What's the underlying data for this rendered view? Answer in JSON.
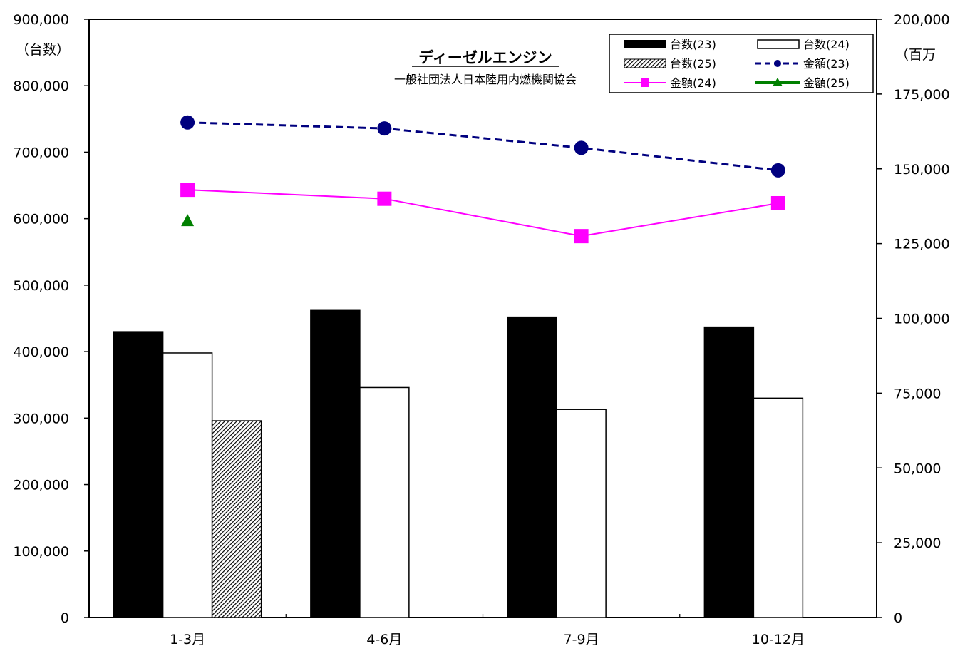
{
  "chart_data": {
    "type": "bar",
    "title": "ディーゼルエンジン",
    "subtitle": "一般社団法人日本陸用内燃機関協会",
    "categories": [
      "1-3月",
      "4-6月",
      "7-9月",
      "10-12月"
    ],
    "y_left": {
      "unit_label": "（台数）",
      "range": [
        0,
        900000
      ],
      "ticks": [
        "0",
        "100,000",
        "200,000",
        "300,000",
        "400,000",
        "500,000",
        "600,000",
        "700,000",
        "800,000",
        "900,000"
      ]
    },
    "y_right": {
      "unit_label": "（百万",
      "range": [
        0,
        200000
      ],
      "ticks": [
        "0",
        "25,000",
        "50,000",
        "75,000",
        "100,000",
        "125,000",
        "150,000",
        "175,000",
        "200,000"
      ]
    },
    "bar_series": [
      {
        "name": "台数(23)",
        "style": "solid-black",
        "values": [
          430000,
          462000,
          452000,
          437000
        ]
      },
      {
        "name": "台数(24)",
        "style": "white",
        "values": [
          398000,
          346000,
          313000,
          330000
        ]
      },
      {
        "name": "台数(25)",
        "style": "hatched",
        "values": [
          296000,
          null,
          null,
          null
        ]
      }
    ],
    "line_series": [
      {
        "name": "金額(23)",
        "axis": "right",
        "color": "#00007F",
        "marker": "circle",
        "dash": "dashed",
        "values": [
          165500,
          163500,
          157000,
          149500
        ]
      },
      {
        "name": "金額(24)",
        "axis": "right",
        "color": "#FF00FF",
        "marker": "square",
        "dash": "solid",
        "values": [
          143000,
          140000,
          127500,
          138500
        ]
      },
      {
        "name": "金額(25)",
        "axis": "right",
        "color": "#008000",
        "marker": "triangle",
        "dash": "solid",
        "values": [
          132500,
          null,
          null,
          null
        ]
      }
    ],
    "legend_position": "top-right",
    "grid": false
  }
}
